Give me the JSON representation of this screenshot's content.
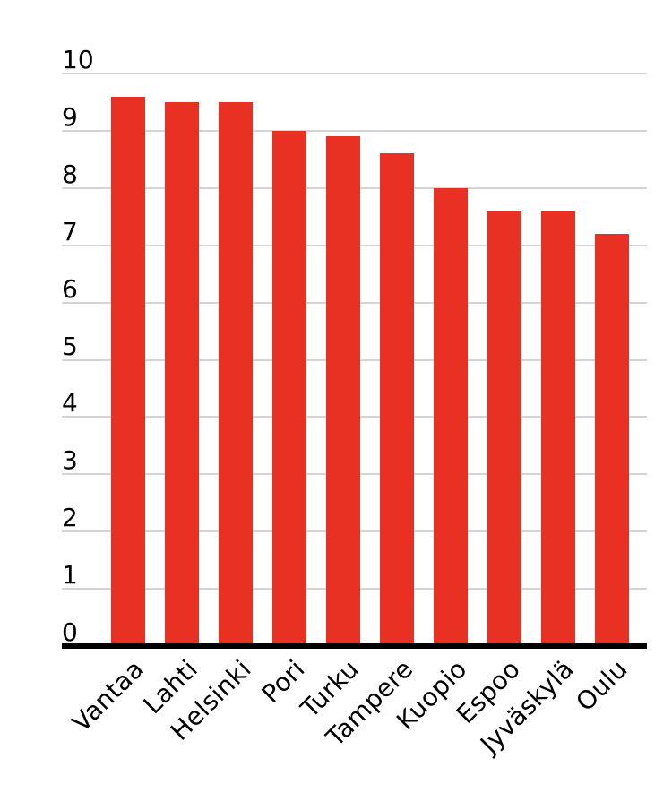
{
  "chart_data": {
    "type": "bar",
    "categories": [
      "Vantaa",
      "Lahti",
      "Helsinki",
      "Pori",
      "Turku",
      "Tampere",
      "Kuopio",
      "Espoo",
      "Jyväskylä",
      "Oulu"
    ],
    "values": [
      9.6,
      9.5,
      9.5,
      9.0,
      8.9,
      8.6,
      8.0,
      7.6,
      7.6,
      7.2
    ],
    "title": "",
    "xlabel": "",
    "ylabel": "",
    "ylim": [
      0,
      10
    ],
    "yticks": [
      0,
      1,
      2,
      3,
      4,
      5,
      6,
      7,
      8,
      9,
      10
    ],
    "grid": true,
    "legend": false,
    "bar_color": "#e93123",
    "gridline_color": "#d4d4d4",
    "axis_color": "#000000",
    "background": "#ffffff"
  }
}
